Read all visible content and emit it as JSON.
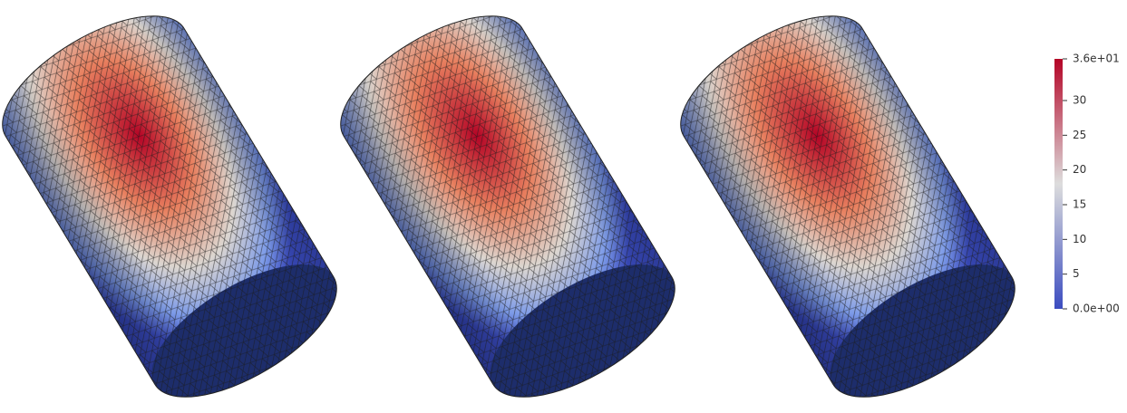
{
  "colorbar": {
    "range": [
      0,
      36
    ],
    "ticks": [
      {
        "value": 0,
        "label": "0.0e+00"
      },
      5,
      10,
      15,
      20,
      25,
      30,
      {
        "value": 36,
        "label": "3.6e+01"
      }
    ],
    "colors": [
      "#3b4cc0",
      "#dddddd",
      "#b40426"
    ]
  }
}
